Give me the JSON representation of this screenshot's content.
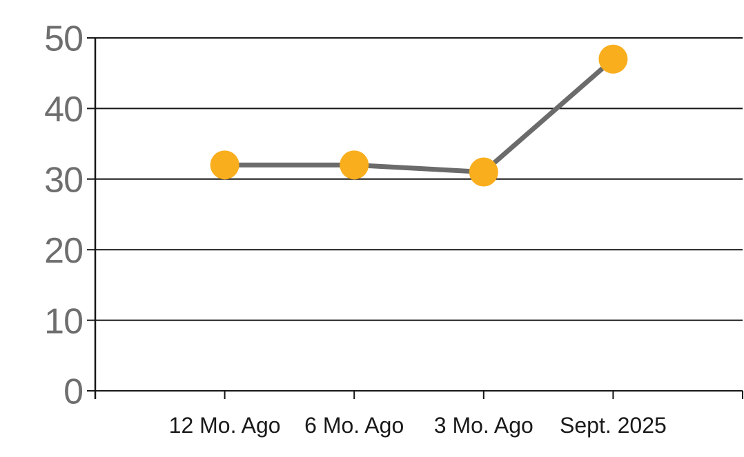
{
  "chart_data": {
    "type": "line",
    "title": "",
    "xlabel": "",
    "ylabel": "",
    "categories": [
      "12 Mo. Ago",
      "6 Mo. Ago",
      "3 Mo. Ago",
      "Sept. 2025"
    ],
    "series": [
      {
        "name": "series-1",
        "values": [
          32,
          32,
          31,
          47
        ]
      }
    ],
    "ylim": [
      0,
      50
    ],
    "yticks": [
      0,
      10,
      20,
      30,
      40,
      50
    ],
    "grid": true,
    "legend": false,
    "marker_shape": "circle",
    "colors": {
      "marker": "#F9AE1D",
      "line": "#6B6B6B",
      "gridline": "#161616",
      "axis": "#161616",
      "y_tick_label": "#6E6E6E",
      "x_tick_label": "#1A1A1A",
      "background": "#FFFFFF"
    }
  }
}
